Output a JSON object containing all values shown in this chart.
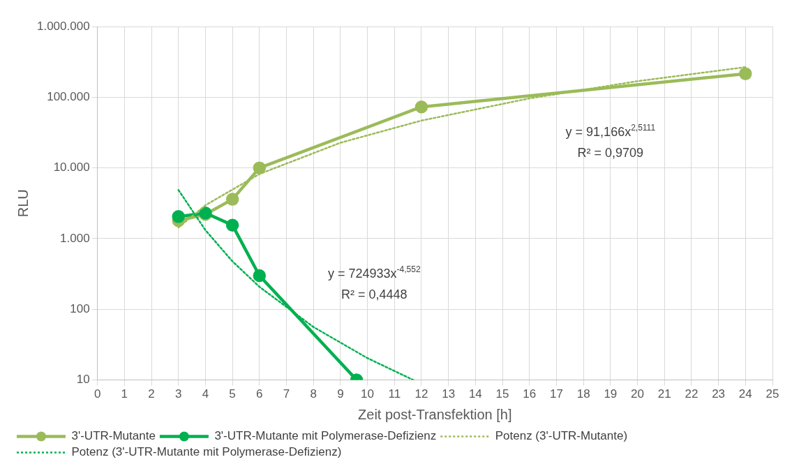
{
  "chart_data": {
    "type": "line",
    "xlabel": "Zeit post-Transfektion [h]",
    "ylabel": "RLU",
    "xlim": [
      0,
      25
    ],
    "xticks": [
      0,
      1,
      2,
      3,
      4,
      5,
      6,
      7,
      8,
      9,
      10,
      11,
      12,
      13,
      14,
      15,
      16,
      17,
      18,
      19,
      20,
      21,
      22,
      23,
      24,
      25
    ],
    "ylim": [
      10,
      1000000
    ],
    "log": true,
    "yticks": [
      {
        "value": 10,
        "label": "10"
      },
      {
        "value": 100,
        "label": "100"
      },
      {
        "value": 1000,
        "label": "1.000"
      },
      {
        "value": 10000,
        "label": "10.000"
      },
      {
        "value": 100000,
        "label": "100.000"
      },
      {
        "value": 1000000,
        "label": "1.000.000"
      }
    ],
    "grid": true,
    "legend": "bottom",
    "series": [
      {
        "name": "3'-UTR-Mutante",
        "color": "#9bbb59",
        "x": [
          3,
          4,
          5,
          6,
          12,
          24
        ],
        "values": [
          1800,
          2200,
          3600,
          10000,
          73000,
          215000
        ],
        "marker": "circle",
        "line_style": "solid"
      },
      {
        "name": "3'-UTR-Mutante mit Polymerase-Defizienz",
        "color": "#00b050",
        "x": [
          3,
          4,
          5,
          6,
          9.6
        ],
        "values": [
          2050,
          2300,
          1550,
          300,
          10
        ],
        "marker": "circle",
        "line_style": "solid"
      },
      {
        "name": "Potenz (3'-UTR-Mutante)",
        "color": "#9bbb59",
        "x": [
          3,
          4,
          6,
          9,
          12,
          16,
          20,
          24
        ],
        "values": [
          1439,
          2962,
          8201,
          22700,
          46740,
          96270,
          168500,
          266400
        ],
        "marker": "none",
        "line_style": "dotted"
      },
      {
        "name": "Potenz (3'-UTR-Mutante mit Polymerase-Defizienz)",
        "color": "#00b050",
        "x": [
          3,
          4,
          5,
          6,
          8,
          10,
          11.7
        ],
        "values": [
          4880,
          1317,
          477,
          208,
          56.2,
          20.4,
          10
        ],
        "marker": "none",
        "line_style": "dotted"
      }
    ],
    "annotations": [
      "y = 91,166x$^{2,5111}$",
      "R² = 0,9709",
      "y = 724933x$^{-4,552}$",
      "R² = 0,4448"
    ]
  }
}
